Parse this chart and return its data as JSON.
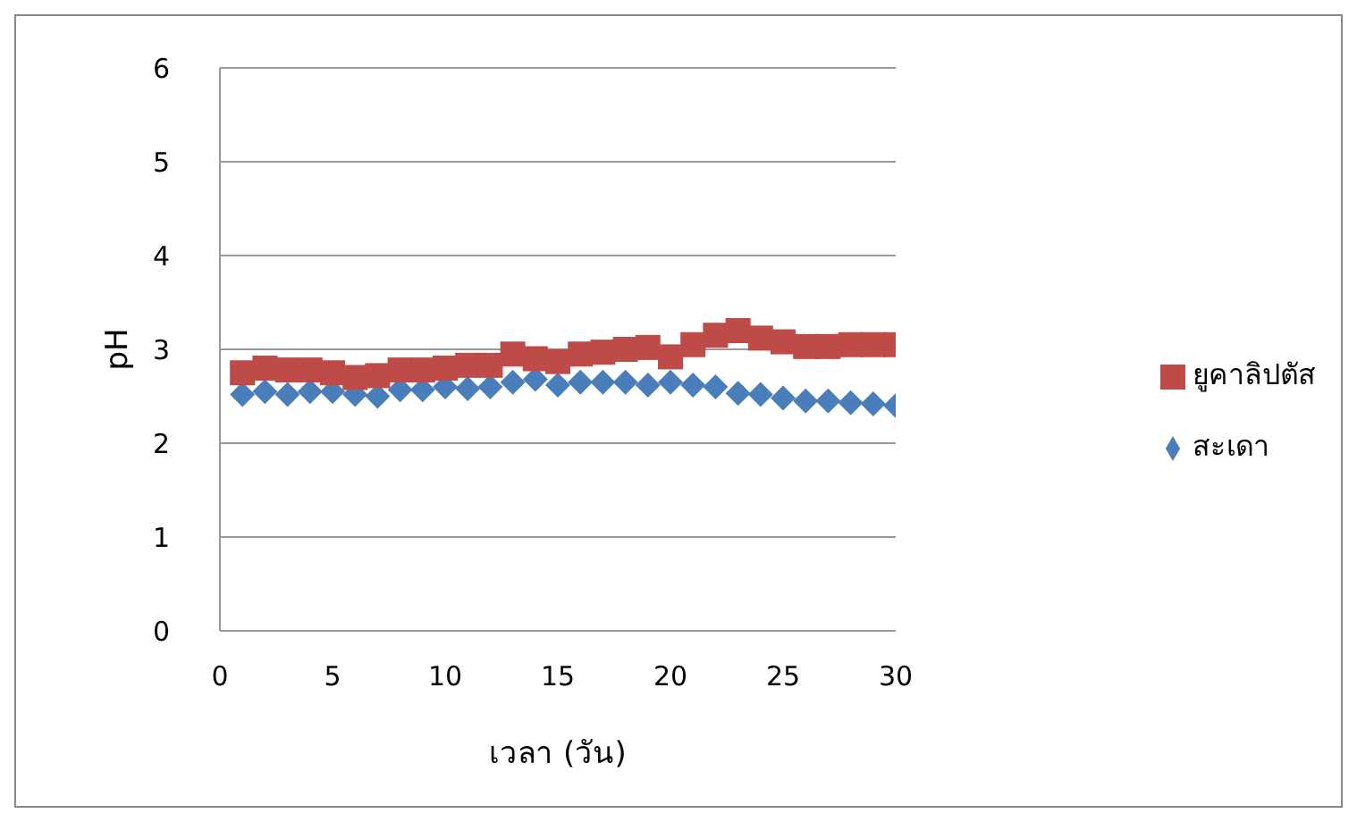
{
  "chart_data": {
    "type": "scatter",
    "xlabel": "เวลา (วัน)",
    "ylabel": "pH",
    "x": [
      1,
      2,
      3,
      4,
      5,
      6,
      7,
      8,
      9,
      10,
      11,
      12,
      13,
      14,
      15,
      16,
      17,
      18,
      19,
      20,
      21,
      22,
      23,
      24,
      25,
      26,
      27,
      28,
      29,
      30
    ],
    "xlim": [
      0,
      30
    ],
    "xticks": [
      0,
      5,
      10,
      15,
      20,
      25,
      30
    ],
    "ylim": [
      0,
      6
    ],
    "yticks": [
      0,
      1,
      2,
      3,
      4,
      5,
      6
    ],
    "grid": "y",
    "legend": "right",
    "series": [
      {
        "name": "สะเดา",
        "color": "#4a7ebb",
        "marker": "diamond",
        "values": [
          2.52,
          2.55,
          2.52,
          2.55,
          2.55,
          2.52,
          2.5,
          2.57,
          2.57,
          2.6,
          2.58,
          2.6,
          2.65,
          2.68,
          2.62,
          2.65,
          2.65,
          2.65,
          2.62,
          2.65,
          2.62,
          2.6,
          2.53,
          2.52,
          2.48,
          2.45,
          2.45,
          2.43,
          2.42,
          2.4
        ]
      },
      {
        "name": "ยูคาลิปตัส",
        "color": "#be4b48",
        "marker": "square",
        "values": [
          2.75,
          2.8,
          2.78,
          2.78,
          2.75,
          2.7,
          2.72,
          2.78,
          2.78,
          2.8,
          2.83,
          2.83,
          2.95,
          2.9,
          2.87,
          2.95,
          2.97,
          3.0,
          3.02,
          2.92,
          3.05,
          3.15,
          3.2,
          3.12,
          3.08,
          3.03,
          3.03,
          3.05,
          3.05,
          3.05
        ]
      }
    ]
  }
}
